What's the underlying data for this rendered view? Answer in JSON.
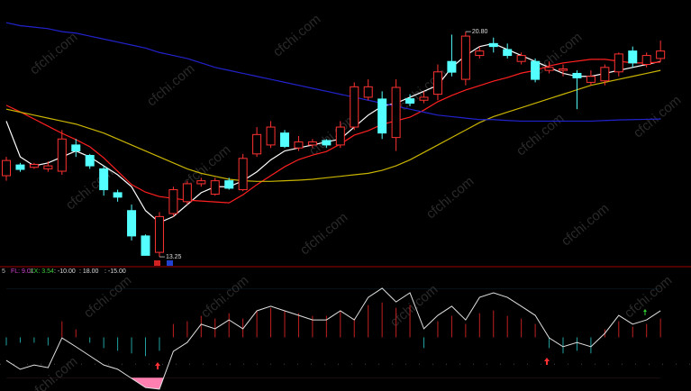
{
  "chart_data": {
    "type": "candlestick",
    "watermark": "cfchi.com",
    "up_color": "#ff3232",
    "down_color": "#54ffff",
    "ylim": [
      12.95,
      21.86
    ],
    "open": [
      15.97,
      16.33,
      16.25,
      16.2,
      16.12,
      17.0,
      16.65,
      16.2,
      15.4,
      14.8,
      13.95,
      13.4,
      14.7,
      15.1,
      15.7,
      15.35,
      15.8,
      15.5,
      16.7,
      17.0,
      17.4,
      16.9,
      17.0,
      17.15,
      17.0,
      17.6,
      18.6,
      18.54,
      17.25,
      18.55,
      18.5,
      18.7,
      19.8,
      19.2,
      20.0,
      20.4,
      20.2,
      19.8,
      19.8,
      19.5,
      19.5,
      19.4,
      19.1,
      19.15,
      19.45,
      20.15,
      19.7,
      19.9
    ],
    "high": [
      16.6,
      16.4,
      16.4,
      16.45,
      17.5,
      17.2,
      16.7,
      16.3,
      15.5,
      15.0,
      14.0,
      14.75,
      15.6,
      15.8,
      15.9,
      15.9,
      15.9,
      16.7,
      17.6,
      17.8,
      17.5,
      17.3,
      17.2,
      17.2,
      17.8,
      19.1,
      19.2,
      18.8,
      19.2,
      18.7,
      18.8,
      19.7,
      20.7,
      20.8,
      20.3,
      20.6,
      20.4,
      20.1,
      19.9,
      19.8,
      19.7,
      19.5,
      19.5,
      19.7,
      20.1,
      20.3,
      20.1,
      20.5
    ],
    "low": [
      15.8,
      16.1,
      16.2,
      16.1,
      16.0,
      16.6,
      16.2,
      15.3,
      15.1,
      13.8,
      13.3,
      13.25,
      14.6,
      15.0,
      15.6,
      15.3,
      15.5,
      15.45,
      16.6,
      16.9,
      16.9,
      16.8,
      16.9,
      16.9,
      16.9,
      17.5,
      18.5,
      17.2,
      16.8,
      18.3,
      18.4,
      18.5,
      19.3,
      19.0,
      19.9,
      20.1,
      19.9,
      19.7,
      19.1,
      19.4,
      19.3,
      18.2,
      19.0,
      19.0,
      19.3,
      19.6,
      19.6,
      19.8
    ],
    "close": [
      16.48,
      16.18,
      16.35,
      16.3,
      17.2,
      16.8,
      16.3,
      15.5,
      15.25,
      13.95,
      13.3,
      14.6,
      15.5,
      15.7,
      15.8,
      15.8,
      15.55,
      16.55,
      17.35,
      17.6,
      16.95,
      17.1,
      17.1,
      17.0,
      17.6,
      18.95,
      18.95,
      17.4,
      18.93,
      18.4,
      18.6,
      19.45,
      19.44,
      20.65,
      20.15,
      20.3,
      20.0,
      20.0,
      19.2,
      19.6,
      19.55,
      19.25,
      19.3,
      19.6,
      20.05,
      19.75,
      20.0,
      20.15
    ],
    "annotations": [
      {
        "value": 20.8,
        "label": "20.80"
      },
      {
        "value": 13.25,
        "label": "13.25"
      }
    ],
    "series": [
      {
        "color": "#ffffff",
        "values": [
          17.8,
          16.6,
          16.3,
          16.4,
          16.6,
          16.8,
          16.6,
          16.3,
          16.0,
          15.6,
          14.8,
          14.4,
          14.6,
          15.0,
          15.4,
          15.6,
          15.6,
          15.8,
          16.1,
          16.5,
          16.8,
          16.9,
          17.0,
          17.1,
          17.2,
          17.6,
          18.0,
          18.3,
          18.4,
          18.6,
          18.8,
          19.0,
          19.6,
          20.0,
          20.3,
          20.4,
          20.2,
          20.0,
          19.8,
          19.6,
          19.4,
          19.3,
          19.3,
          19.4,
          19.5,
          19.6,
          19.7,
          19.8
        ]
      },
      {
        "color": "#ff2020",
        "values": [
          18.33,
          18.11,
          17.87,
          17.63,
          17.39,
          17.18,
          16.94,
          16.57,
          16.12,
          15.67,
          15.42,
          15.27,
          15.21,
          15.15,
          15.12,
          15.09,
          15.06,
          15.33,
          15.67,
          15.97,
          16.27,
          16.51,
          16.66,
          16.78,
          17.03,
          17.33,
          17.48,
          17.69,
          17.81,
          17.93,
          18.17,
          18.45,
          18.66,
          18.84,
          18.99,
          19.14,
          19.26,
          19.41,
          19.5,
          19.65,
          19.75,
          19.81,
          19.87,
          19.87,
          19.81,
          19.75,
          19.75,
          19.78
        ]
      },
      {
        "color": "#c8b400",
        "values": [
          18.2,
          18.1,
          18.0,
          17.9,
          17.8,
          17.7,
          17.55,
          17.4,
          17.2,
          17.0,
          16.8,
          16.6,
          16.4,
          16.2,
          16.05,
          15.95,
          15.85,
          15.8,
          15.78,
          15.78,
          15.8,
          15.82,
          15.85,
          15.9,
          15.95,
          16.0,
          16.05,
          16.15,
          16.3,
          16.5,
          16.75,
          17.0,
          17.25,
          17.5,
          17.75,
          17.95,
          18.1,
          18.25,
          18.4,
          18.55,
          18.7,
          18.85,
          19.0,
          19.1,
          19.2,
          19.3,
          19.4,
          19.5
        ]
      },
      {
        "color": "#2222cc",
        "values": [
          21.1,
          21.0,
          20.95,
          20.9,
          20.8,
          20.75,
          20.65,
          20.55,
          20.45,
          20.35,
          20.25,
          20.1,
          20.0,
          19.9,
          19.75,
          19.6,
          19.5,
          19.4,
          19.3,
          19.2,
          19.1,
          19.0,
          18.9,
          18.8,
          18.7,
          18.6,
          18.5,
          18.4,
          18.3,
          18.2,
          18.1,
          18.0,
          17.95,
          17.9,
          17.85,
          17.85,
          17.82,
          17.8,
          17.8,
          17.8,
          17.8,
          17.8,
          17.8,
          17.82,
          17.84,
          17.85,
          17.86,
          17.87
        ]
      }
    ],
    "indicator": {
      "name": "5",
      "fl_label": "FL: 9.01",
      "xx_label": "XX: 3.54",
      "ylim": [
        -20,
        25
      ],
      "levels": [
        {
          "value": -10,
          "label": ": -10.00"
        },
        {
          "value": 18,
          "label": ": 18.00"
        },
        {
          "value": -15,
          "label": ": -15.00"
        }
      ],
      "high_color": "#3fb6ff",
      "low_color": "#ff7fb0",
      "line_color": "#e0e0e0",
      "values": [
        -8.6,
        -11.9,
        -10.3,
        -11.3,
        -0.2,
        -3.5,
        -6.9,
        -10.3,
        -11.9,
        -15.3,
        -18.7,
        -19.3,
        -5.2,
        -1.9,
        4.9,
        3.2,
        6.5,
        3.2,
        9.9,
        11.6,
        9.9,
        8.2,
        6.5,
        6.5,
        9.9,
        6.5,
        14.9,
        18.3,
        13.2,
        16.6,
        3.2,
        8.2,
        11.6,
        6.5,
        14.9,
        16.6,
        14.9,
        11.6,
        8.2,
        -0.2,
        -3.5,
        -1.9,
        -3.5,
        1.5,
        8.2,
        4.9,
        6.5,
        9.9
      ],
      "bars": [
        -3,
        -2,
        -2,
        -3,
        6,
        3,
        -2,
        -4,
        -5,
        -6,
        -7,
        -5,
        5,
        6,
        8,
        7,
        9,
        7,
        10,
        11,
        10,
        9,
        8,
        8,
        10,
        7,
        12,
        13,
        11,
        12,
        -4,
        6,
        8,
        5,
        9,
        10,
        8,
        7,
        5,
        -4,
        -6,
        -5,
        -6,
        3,
        6,
        4,
        5,
        7
      ]
    }
  }
}
